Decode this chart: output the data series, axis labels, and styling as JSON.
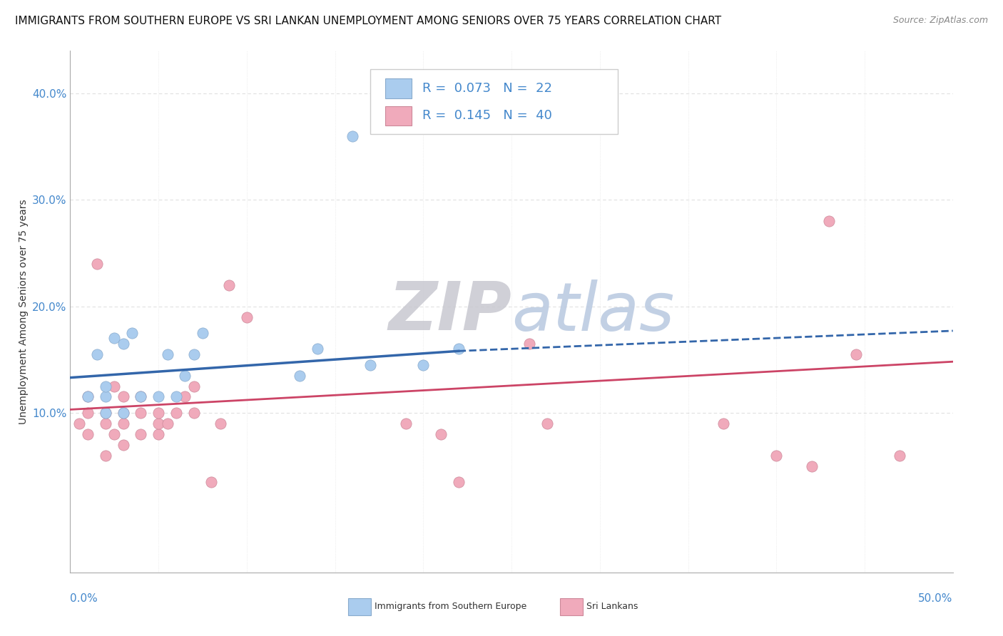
{
  "title": "IMMIGRANTS FROM SOUTHERN EUROPE VS SRI LANKAN UNEMPLOYMENT AMONG SENIORS OVER 75 YEARS CORRELATION CHART",
  "source": "Source: ZipAtlas.com",
  "ylabel": "Unemployment Among Seniors over 75 years",
  "xlim": [
    0.0,
    0.5
  ],
  "ylim": [
    -0.05,
    0.44
  ],
  "blue_scatter_x": [
    0.01,
    0.015,
    0.02,
    0.02,
    0.02,
    0.025,
    0.03,
    0.03,
    0.035,
    0.04,
    0.05,
    0.055,
    0.06,
    0.065,
    0.07,
    0.075,
    0.13,
    0.14,
    0.16,
    0.17,
    0.2,
    0.22
  ],
  "blue_scatter_y": [
    0.115,
    0.155,
    0.1,
    0.115,
    0.125,
    0.17,
    0.1,
    0.165,
    0.175,
    0.115,
    0.115,
    0.155,
    0.115,
    0.135,
    0.155,
    0.175,
    0.135,
    0.16,
    0.36,
    0.145,
    0.145,
    0.16
  ],
  "pink_scatter_x": [
    0.005,
    0.01,
    0.01,
    0.01,
    0.015,
    0.02,
    0.02,
    0.02,
    0.025,
    0.025,
    0.03,
    0.03,
    0.03,
    0.03,
    0.04,
    0.04,
    0.04,
    0.05,
    0.05,
    0.05,
    0.055,
    0.06,
    0.065,
    0.07,
    0.07,
    0.08,
    0.085,
    0.09,
    0.1,
    0.19,
    0.21,
    0.22,
    0.26,
    0.27,
    0.37,
    0.4,
    0.42,
    0.43,
    0.445,
    0.47
  ],
  "pink_scatter_y": [
    0.09,
    0.08,
    0.1,
    0.115,
    0.24,
    0.06,
    0.09,
    0.1,
    0.08,
    0.125,
    0.07,
    0.09,
    0.1,
    0.115,
    0.08,
    0.1,
    0.115,
    0.08,
    0.09,
    0.1,
    0.09,
    0.1,
    0.115,
    0.1,
    0.125,
    0.035,
    0.09,
    0.22,
    0.19,
    0.09,
    0.08,
    0.035,
    0.165,
    0.09,
    0.09,
    0.06,
    0.05,
    0.28,
    0.155,
    0.06
  ],
  "blue_solid_trend": {
    "x": [
      0.0,
      0.22
    ],
    "y": [
      0.133,
      0.158
    ]
  },
  "blue_dash_trend": {
    "x": [
      0.22,
      0.5
    ],
    "y": [
      0.158,
      0.177
    ]
  },
  "pink_solid_trend": {
    "x": [
      0.0,
      0.5
    ],
    "y": [
      0.103,
      0.148
    ]
  },
  "blue_scatter_color": "#aaccee",
  "blue_scatter_edge": "#88aacc",
  "blue_line_color": "#3366aa",
  "pink_scatter_color": "#f0aabb",
  "pink_scatter_edge": "#cc8899",
  "pink_line_color": "#cc4466",
  "watermark_zip_color": "#c8c8d0",
  "watermark_atlas_color": "#b8c8e0",
  "bg_color": "#ffffff",
  "grid_color": "#e0e0e0",
  "tick_color": "#4488cc",
  "title_fontsize": 11,
  "ylabel_fontsize": 10,
  "tick_fontsize": 11,
  "source_fontsize": 9,
  "scatter_size": 120
}
